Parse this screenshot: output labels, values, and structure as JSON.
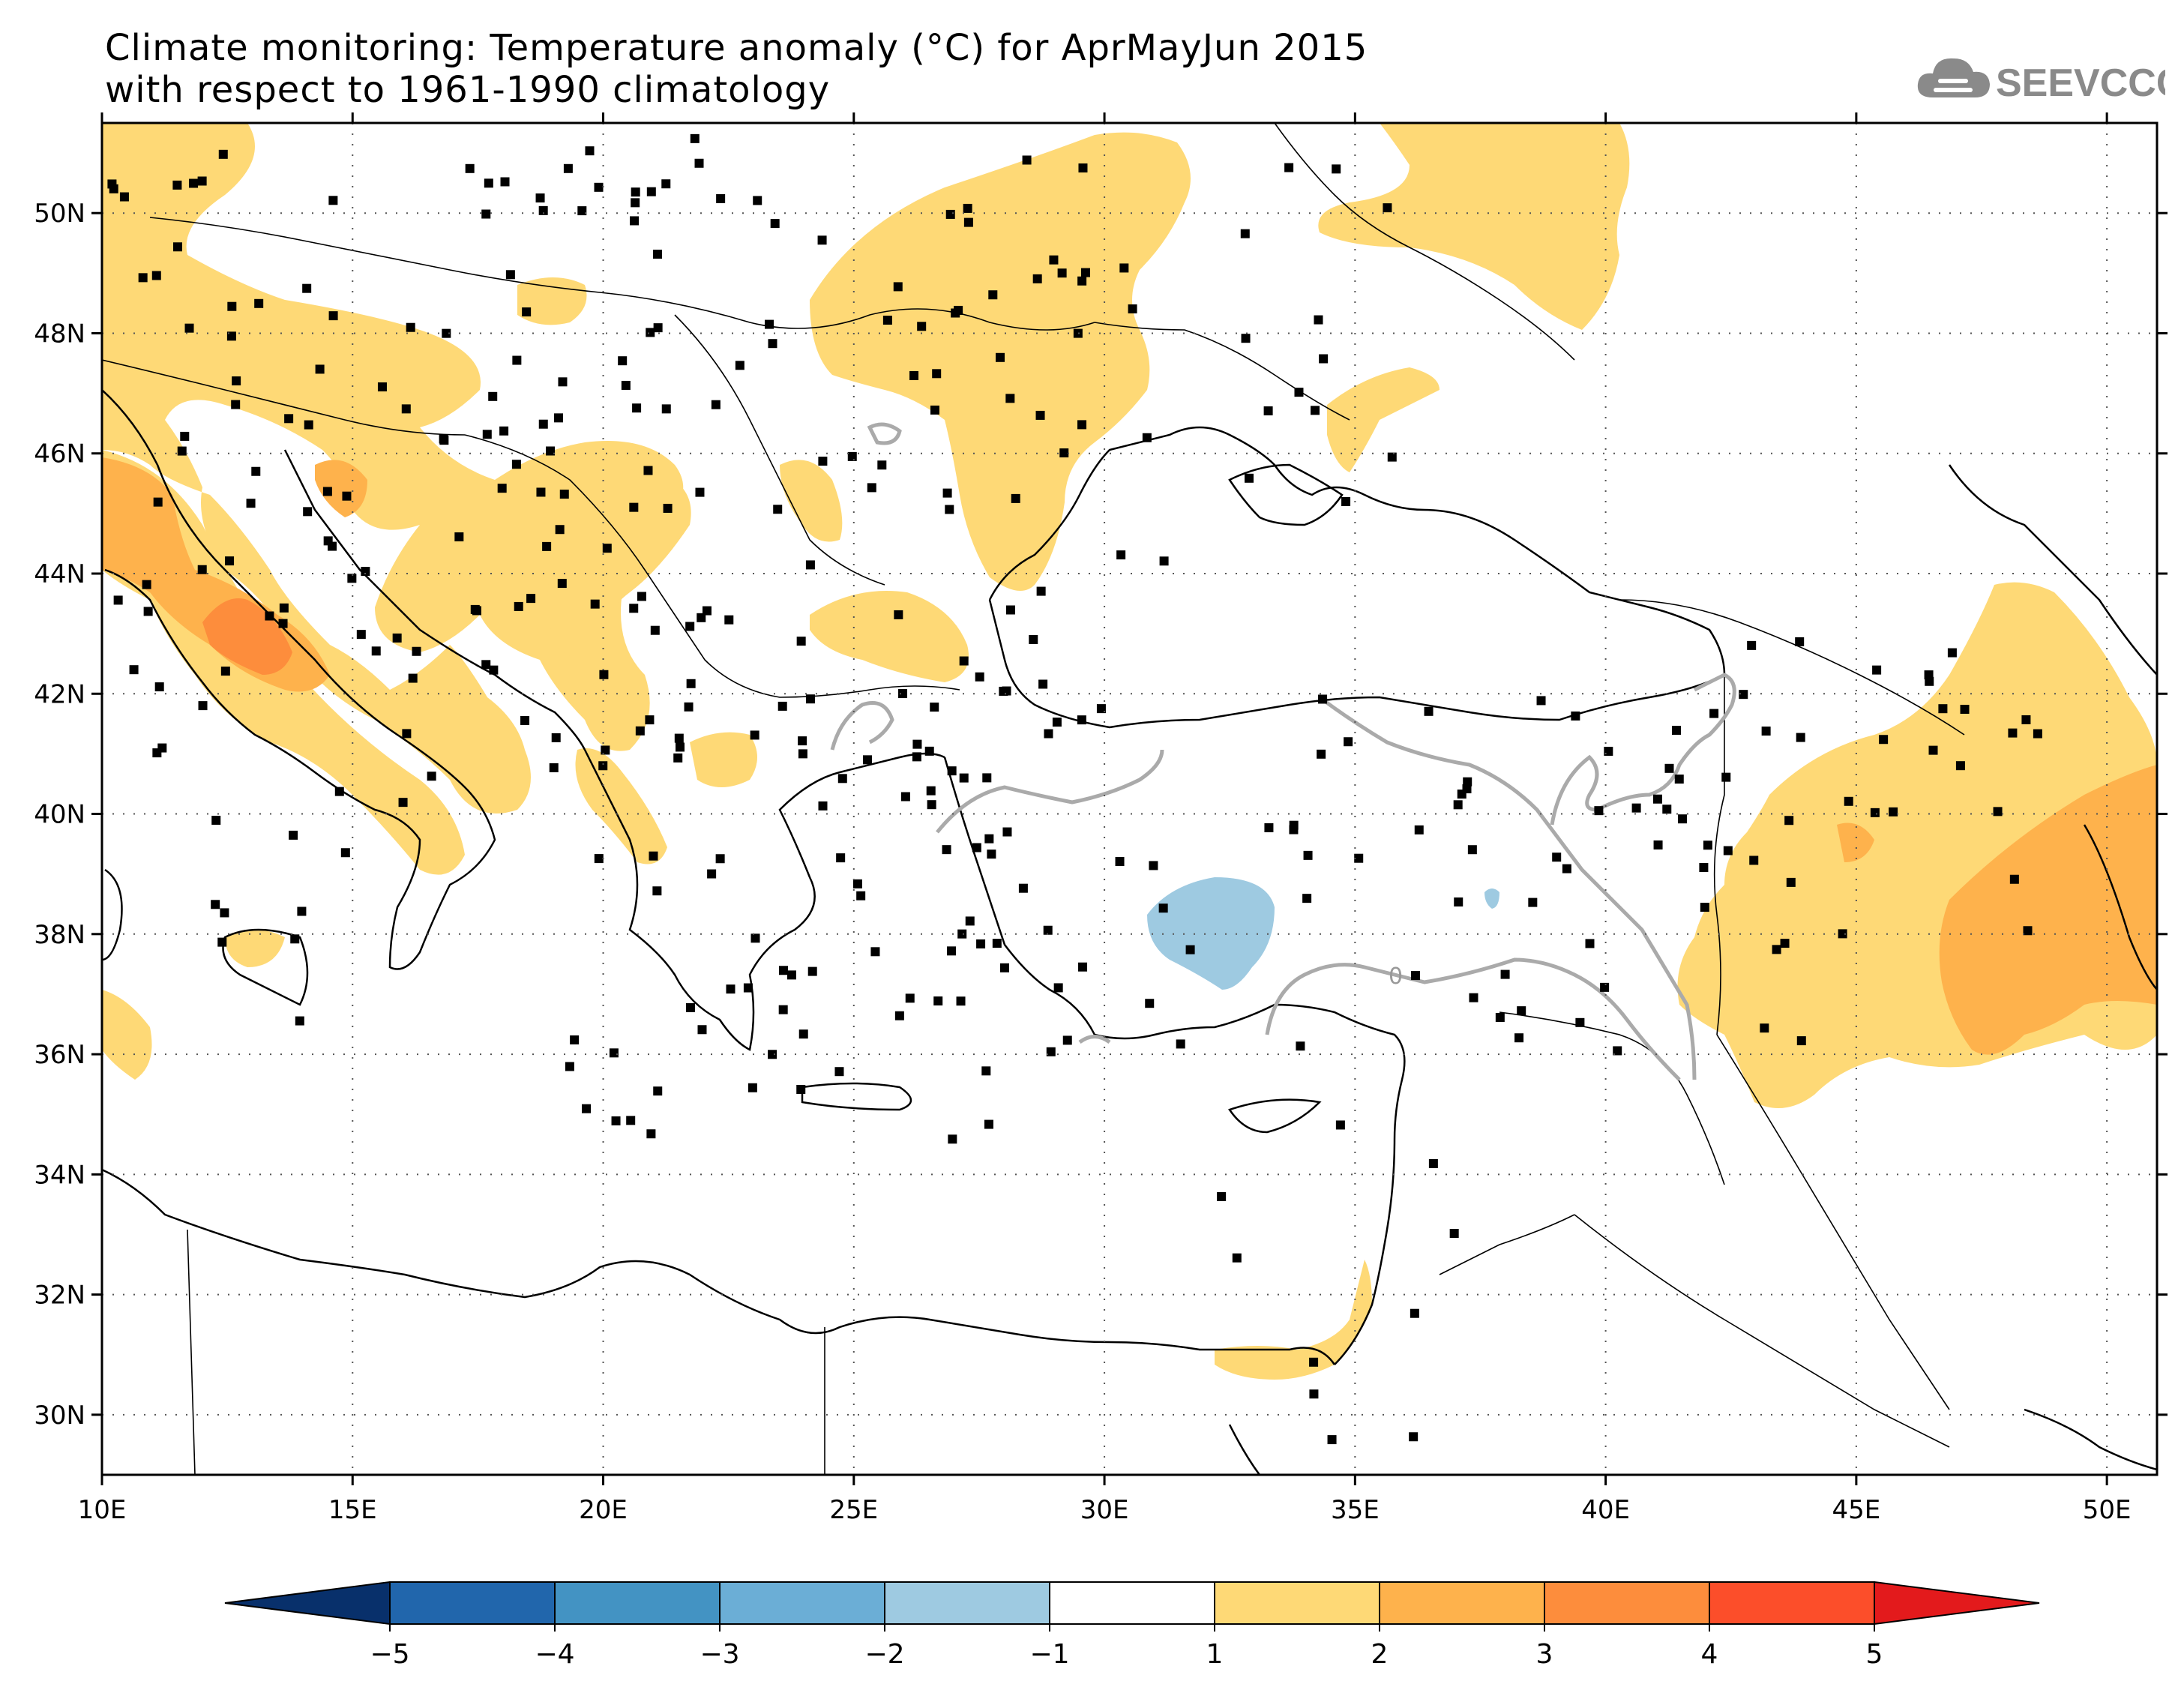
{
  "title": {
    "line1": "Climate monitoring: Temperature anomaly (°C) for AprMayJun 2015",
    "line2": "with respect to 1961-1990 climatology"
  },
  "logo": {
    "text": "SEEVCCC",
    "icon": "cloud-icon",
    "color": "#8a8a8a"
  },
  "map": {
    "lon_range": [
      10,
      51
    ],
    "lat_range": [
      29,
      51.5
    ],
    "lon_ticks": [
      {
        "value": 10,
        "label": "10E"
      },
      {
        "value": 15,
        "label": "15E"
      },
      {
        "value": 20,
        "label": "20E"
      },
      {
        "value": 25,
        "label": "25E"
      },
      {
        "value": 30,
        "label": "30E"
      },
      {
        "value": 35,
        "label": "35E"
      },
      {
        "value": 40,
        "label": "40E"
      },
      {
        "value": 45,
        "label": "45E"
      },
      {
        "value": 50,
        "label": "50E"
      }
    ],
    "lat_ticks": [
      {
        "value": 30,
        "label": "30N"
      },
      {
        "value": 32,
        "label": "32N"
      },
      {
        "value": 34,
        "label": "34N"
      },
      {
        "value": 36,
        "label": "36N"
      },
      {
        "value": 38,
        "label": "38N"
      },
      {
        "value": 40,
        "label": "40N"
      },
      {
        "value": 42,
        "label": "42N"
      },
      {
        "value": 44,
        "label": "44N"
      },
      {
        "value": 46,
        "label": "46N"
      },
      {
        "value": 48,
        "label": "48N"
      },
      {
        "value": 50,
        "label": "50N"
      }
    ],
    "grid": "dotted",
    "contour_label": "0"
  },
  "colorbar": {
    "colors": [
      "#08306b",
      "#2166ac",
      "#4393c3",
      "#6baed6",
      "#9ecae1",
      "#ffffff",
      "#fed976",
      "#feb24c",
      "#fd8d3c",
      "#fc4e2a",
      "#e31a1c"
    ],
    "labels": [
      "-5",
      "-4",
      "-3",
      "-2",
      "-1",
      "1",
      "2",
      "3",
      "4",
      "5"
    ],
    "extend": "both"
  }
}
